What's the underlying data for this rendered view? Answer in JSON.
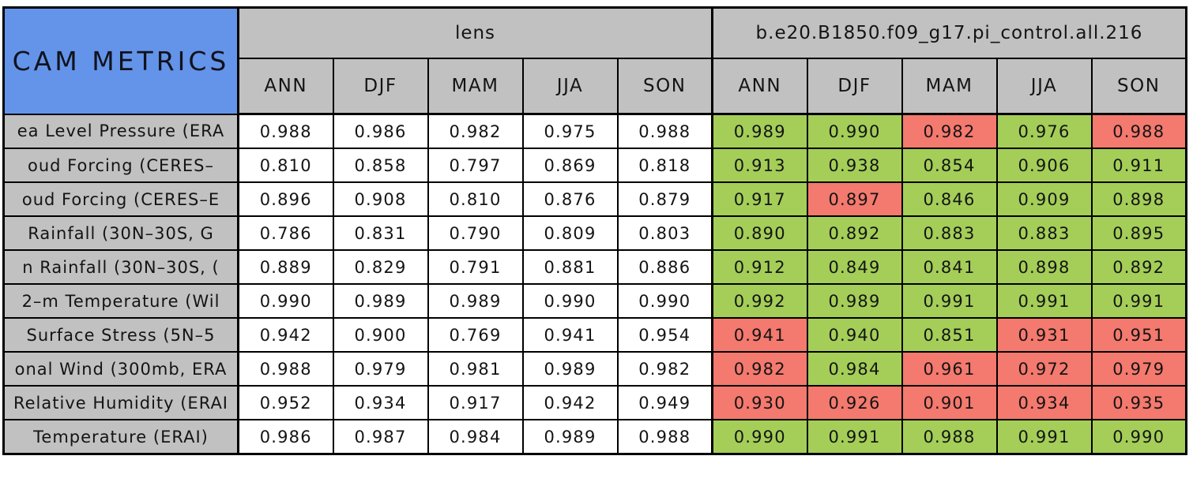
{
  "colors": {
    "blue": "#6494E9",
    "gray": "#C1C1C1",
    "green": "#A4CE58",
    "red": "#F4796E",
    "border": "#000000"
  },
  "chart_data": {
    "type": "table",
    "title": "CAM METRICS",
    "column_groups": [
      "lens",
      "b.e20.B1850.f09_g17.pi_control.all.216"
    ],
    "seasons": [
      "ANN",
      "DJF",
      "MAM",
      "JJA",
      "SON"
    ],
    "status_legend": {
      "good": "green",
      "bad": "red"
    },
    "rows": [
      {
        "label": "ea Level Pressure (ERA",
        "lens": [
          "0.988",
          "0.986",
          "0.982",
          "0.975",
          "0.988"
        ],
        "model": [
          {
            "v": "0.989",
            "s": "good"
          },
          {
            "v": "0.990",
            "s": "good"
          },
          {
            "v": "0.982",
            "s": "bad"
          },
          {
            "v": "0.976",
            "s": "good"
          },
          {
            "v": "0.988",
            "s": "bad"
          }
        ]
      },
      {
        "label": "oud Forcing (CERES–",
        "lens": [
          "0.810",
          "0.858",
          "0.797",
          "0.869",
          "0.818"
        ],
        "model": [
          {
            "v": "0.913",
            "s": "good"
          },
          {
            "v": "0.938",
            "s": "good"
          },
          {
            "v": "0.854",
            "s": "good"
          },
          {
            "v": "0.906",
            "s": "good"
          },
          {
            "v": "0.911",
            "s": "good"
          }
        ]
      },
      {
        "label": "oud Forcing (CERES–E",
        "lens": [
          "0.896",
          "0.908",
          "0.810",
          "0.876",
          "0.879"
        ],
        "model": [
          {
            "v": "0.917",
            "s": "good"
          },
          {
            "v": "0.897",
            "s": "bad"
          },
          {
            "v": "0.846",
            "s": "good"
          },
          {
            "v": "0.909",
            "s": "good"
          },
          {
            "v": "0.898",
            "s": "good"
          }
        ]
      },
      {
        "label": "Rainfall (30N–30S, G",
        "lens": [
          "0.786",
          "0.831",
          "0.790",
          "0.809",
          "0.803"
        ],
        "model": [
          {
            "v": "0.890",
            "s": "good"
          },
          {
            "v": "0.892",
            "s": "good"
          },
          {
            "v": "0.883",
            "s": "good"
          },
          {
            "v": "0.883",
            "s": "good"
          },
          {
            "v": "0.895",
            "s": "good"
          }
        ]
      },
      {
        "label": "n Rainfall (30N–30S, (",
        "lens": [
          "0.889",
          "0.829",
          "0.791",
          "0.881",
          "0.886"
        ],
        "model": [
          {
            "v": "0.912",
            "s": "good"
          },
          {
            "v": "0.849",
            "s": "good"
          },
          {
            "v": "0.841",
            "s": "good"
          },
          {
            "v": "0.898",
            "s": "good"
          },
          {
            "v": "0.892",
            "s": "good"
          }
        ]
      },
      {
        "label": "2–m Temperature (Wil",
        "lens": [
          "0.990",
          "0.989",
          "0.989",
          "0.990",
          "0.990"
        ],
        "model": [
          {
            "v": "0.992",
            "s": "good"
          },
          {
            "v": "0.989",
            "s": "good"
          },
          {
            "v": "0.991",
            "s": "good"
          },
          {
            "v": "0.991",
            "s": "good"
          },
          {
            "v": "0.991",
            "s": "good"
          }
        ]
      },
      {
        "label": "Surface Stress (5N–5",
        "lens": [
          "0.942",
          "0.900",
          "0.769",
          "0.941",
          "0.954"
        ],
        "model": [
          {
            "v": "0.941",
            "s": "bad"
          },
          {
            "v": "0.940",
            "s": "good"
          },
          {
            "v": "0.851",
            "s": "good"
          },
          {
            "v": "0.931",
            "s": "bad"
          },
          {
            "v": "0.951",
            "s": "bad"
          }
        ]
      },
      {
        "label": "onal Wind (300mb, ERA",
        "lens": [
          "0.988",
          "0.979",
          "0.981",
          "0.989",
          "0.982"
        ],
        "model": [
          {
            "v": "0.982",
            "s": "bad"
          },
          {
            "v": "0.984",
            "s": "good"
          },
          {
            "v": "0.961",
            "s": "bad"
          },
          {
            "v": "0.972",
            "s": "bad"
          },
          {
            "v": "0.979",
            "s": "bad"
          }
        ]
      },
      {
        "label": "Relative Humidity (ERAI",
        "lens": [
          "0.952",
          "0.934",
          "0.917",
          "0.942",
          "0.949"
        ],
        "model": [
          {
            "v": "0.930",
            "s": "bad"
          },
          {
            "v": "0.926",
            "s": "bad"
          },
          {
            "v": "0.901",
            "s": "bad"
          },
          {
            "v": "0.934",
            "s": "bad"
          },
          {
            "v": "0.935",
            "s": "bad"
          }
        ]
      },
      {
        "label": "Temperature (ERAI)",
        "lens": [
          "0.986",
          "0.987",
          "0.984",
          "0.989",
          "0.988"
        ],
        "model": [
          {
            "v": "0.990",
            "s": "good"
          },
          {
            "v": "0.991",
            "s": "good"
          },
          {
            "v": "0.988",
            "s": "good"
          },
          {
            "v": "0.991",
            "s": "good"
          },
          {
            "v": "0.990",
            "s": "good"
          }
        ]
      }
    ]
  }
}
